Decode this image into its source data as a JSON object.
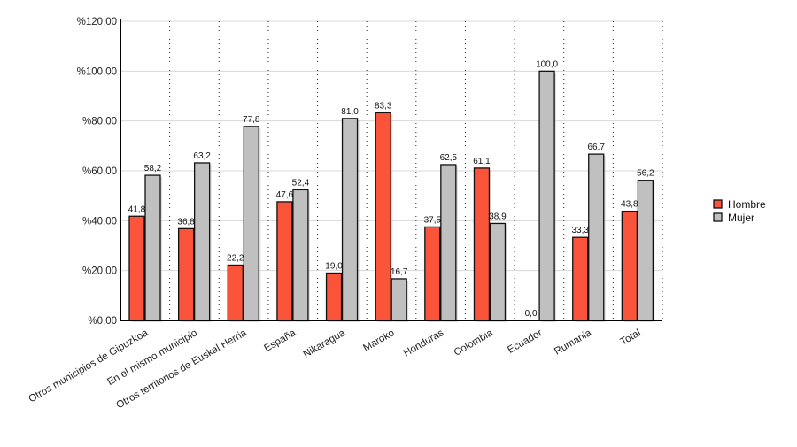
{
  "chart_data": {
    "type": "bar",
    "title": "",
    "xlabel": "",
    "ylabel": "",
    "ylim": [
      0,
      120
    ],
    "yticks": [
      0,
      20,
      40,
      60,
      80,
      100,
      120
    ],
    "ytick_labels": [
      "%0,00",
      "%20,00",
      "%40,00",
      "%60,00",
      "%80,00",
      "%100,00",
      "%120,00"
    ],
    "grid": true,
    "legend_position": "right",
    "categories": [
      "Otros municipios de Gipuzkoa",
      "En el mismo municipio",
      "Otros territorios de Euskal Herria",
      "España",
      "Nikaragua",
      "Maroko",
      "Honduras",
      "Colombia",
      "Ecuador",
      "Rumania",
      "Total"
    ],
    "series": [
      {
        "name": "Hombre",
        "color": "#fa553a",
        "values": [
          41.8,
          36.8,
          22.2,
          47.6,
          19.0,
          83.3,
          37.5,
          61.1,
          0.0,
          33.3,
          43.8
        ],
        "labels": [
          "41,8",
          "36,8",
          "22,2",
          "47,6",
          "19,0",
          "83,3",
          "37,5",
          "61,1",
          "0,0",
          "33,3",
          "43,8"
        ]
      },
      {
        "name": "Mujer",
        "color": "#c0c0c0",
        "values": [
          58.2,
          63.2,
          77.8,
          52.4,
          81.0,
          16.7,
          62.5,
          38.9,
          100.0,
          66.7,
          56.2
        ],
        "labels": [
          "58,2",
          "63,2",
          "77,8",
          "52,4",
          "81,0",
          "16,7",
          "62,5",
          "38,9",
          "100,0",
          "66,7",
          "56,2"
        ]
      }
    ]
  }
}
